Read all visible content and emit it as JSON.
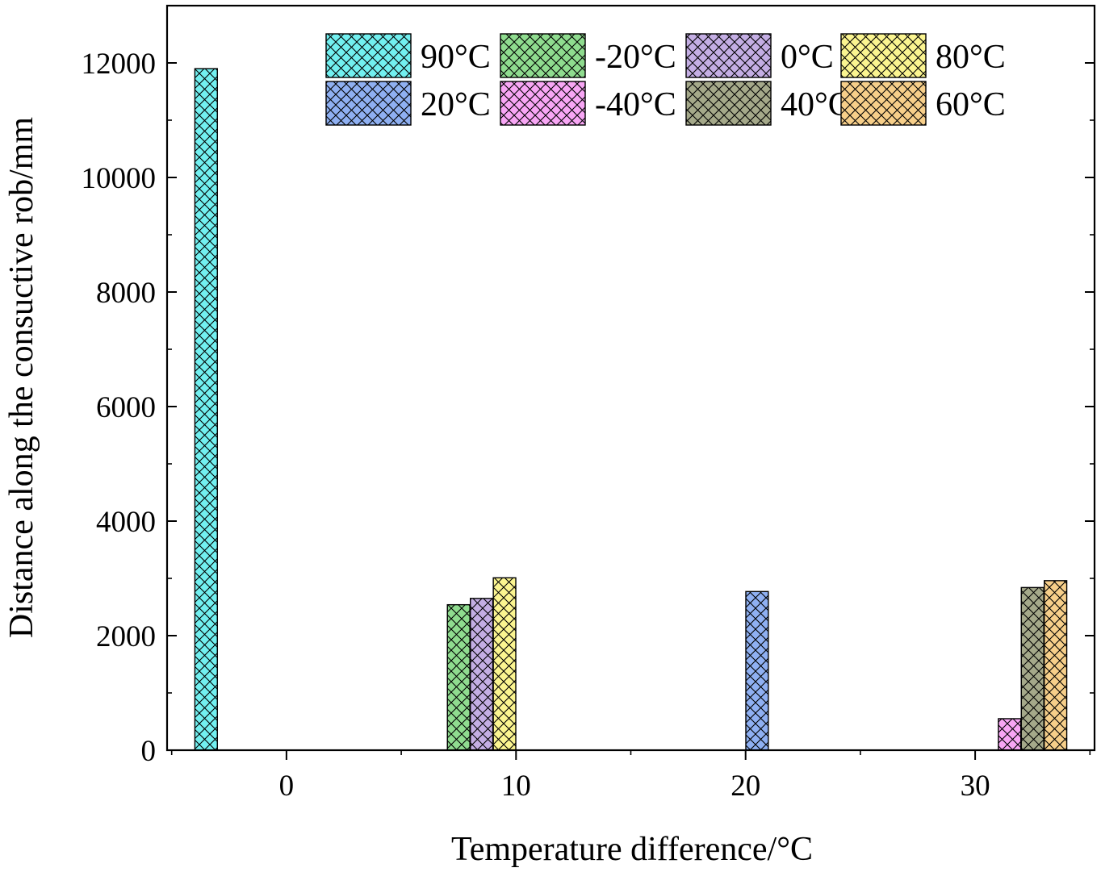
{
  "chart_data": {
    "type": "bar",
    "title": "",
    "xlabel": "Temperature difference/°C",
    "ylabel": "Distance along the consuctive rob/mm",
    "xlim": [
      -5.2,
      35.2
    ],
    "ylim": [
      0,
      13000
    ],
    "x_ticks": [
      "0",
      "10",
      "20",
      "30"
    ],
    "y_ticks": [
      "0",
      "2000",
      "4000",
      "6000",
      "8000",
      "10000",
      "12000"
    ],
    "grid": false,
    "legend_position": "top-right",
    "fill_pattern": "crosshatch",
    "series": [
      {
        "name": "90°C",
        "color": "#72f0f0",
        "x": -3.5,
        "value": 11900
      },
      {
        "name": "-20°C",
        "color": "#8fdc8f",
        "x": 7.5,
        "value": 2540
      },
      {
        "name": "0°C",
        "color": "#c4aee4",
        "x": 8.5,
        "value": 2650
      },
      {
        "name": "80°C",
        "color": "#fbf590",
        "x": 9.5,
        "value": 3010
      },
      {
        "name": "20°C",
        "color": "#8fb0f2",
        "x": 20.5,
        "value": 2770
      },
      {
        "name": "-40°C",
        "color": "#f8a6f5",
        "x": 31.5,
        "value": 550
      },
      {
        "name": "40°C",
        "color": "#a5a98a",
        "x": 32.5,
        "value": 2840
      },
      {
        "name": "60°C",
        "color": "#f7cf8a",
        "x": 33.5,
        "value": 2960
      }
    ]
  }
}
